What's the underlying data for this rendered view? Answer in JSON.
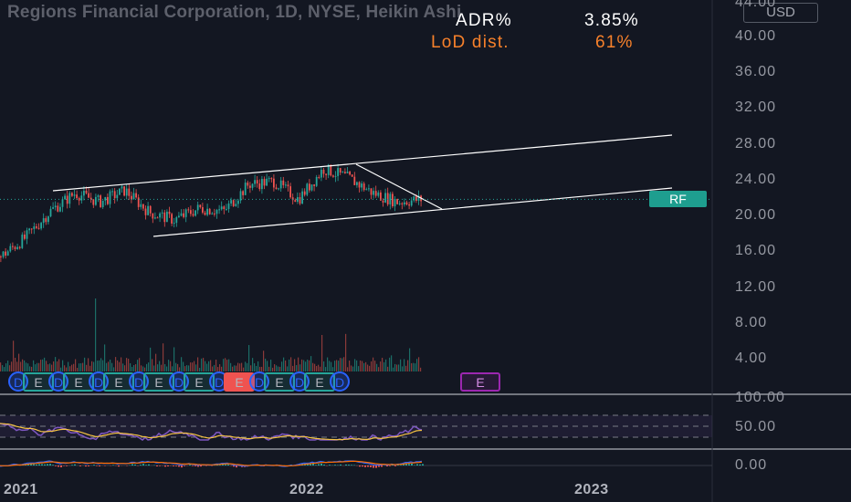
{
  "header": {
    "title": "Regions Financial Corporation, 1D, NYSE, Heikin Ashi",
    "currency": "USD"
  },
  "stats": {
    "adr_label": "ADR%",
    "adr_value": "3.85%",
    "lod_label": "LoD dist.",
    "lod_value": "61%"
  },
  "price_axis": {
    "top_partial": "44.00",
    "labels": [
      "40.00",
      "36.00",
      "32.00",
      "28.00",
      "24.00",
      "20.00",
      "16.00",
      "12.00",
      "8.00",
      "4.00"
    ]
  },
  "oscillator_axis": {
    "labels": [
      "100.00",
      "50.00"
    ]
  },
  "macd_axis": {
    "labels": [
      "0.00"
    ]
  },
  "symbol_badge": "RF",
  "time_axis": {
    "labels": [
      "2021",
      "2022",
      "2023"
    ]
  },
  "events": [
    "D",
    "E",
    "D",
    "E",
    "D",
    "E",
    "D",
    "E",
    "D",
    "E",
    "D",
    "E",
    "D",
    "E",
    "D",
    "E",
    "D"
  ],
  "colors": {
    "background": "#131722",
    "up": "#26a69a",
    "down": "#ef5350",
    "trendline": "#ffffff",
    "rsi": "#7e57c2",
    "rsi_ma": "#f5c342",
    "dividend": "#2962ff",
    "earnings": "#26a69a",
    "earnings_bad": "#ef5350",
    "earnings_upcoming": "#9c27b0"
  },
  "chart_data": {
    "type": "candlestick",
    "title": "Regions Financial Corporation, 1D, NYSE, Heikin Ashi",
    "x_ticks": [
      "2021",
      "2022",
      "2023"
    ],
    "y_ticks": [
      4,
      8,
      12,
      16,
      20,
      24,
      28,
      32,
      36,
      40,
      44
    ],
    "ylim": [
      0,
      44
    ],
    "last_price_label": "RF",
    "last_price": 21.8,
    "series": [
      {
        "name": "price",
        "approx_closes": [
          {
            "x": "2020-12",
            "y": 15.4
          },
          {
            "x": "2021-01",
            "y": 17.5
          },
          {
            "x": "2021-02",
            "y": 20.5
          },
          {
            "x": "2021-03",
            "y": 22.5
          },
          {
            "x": "2021-04",
            "y": 21.5
          },
          {
            "x": "2021-05",
            "y": 22.8
          },
          {
            "x": "2021-06",
            "y": 20.3
          },
          {
            "x": "2021-07",
            "y": 19.5
          },
          {
            "x": "2021-08",
            "y": 20.8
          },
          {
            "x": "2021-09",
            "y": 20.5
          },
          {
            "x": "2021-10",
            "y": 23.5
          },
          {
            "x": "2021-11",
            "y": 23.8
          },
          {
            "x": "2021-12",
            "y": 21.8
          },
          {
            "x": "2022-01",
            "y": 25.2
          },
          {
            "x": "2022-02",
            "y": 24.2
          },
          {
            "x": "2022-03",
            "y": 22.5
          },
          {
            "x": "2022-04",
            "y": 21.5
          },
          {
            "x": "2022-05",
            "y": 21.8
          }
        ]
      }
    ],
    "rsi_levels": [
      70,
      50,
      30
    ],
    "annotations": [
      "channel-upper-line",
      "channel-lower-line",
      "descending-trendline",
      "last-price-line"
    ]
  }
}
